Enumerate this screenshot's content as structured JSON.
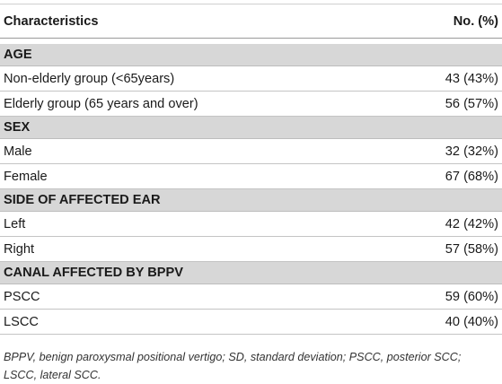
{
  "table": {
    "header": {
      "characteristics": "Characteristics",
      "value": "No. (%)"
    },
    "groups": [
      {
        "title": "AGE",
        "rows": [
          {
            "label": "Non-elderly group (<65years)",
            "value": "43 (43%)"
          },
          {
            "label": "Elderly group (65 years and over)",
            "value": "56 (57%)"
          }
        ]
      },
      {
        "title": "SEX",
        "rows": [
          {
            "label": "Male",
            "value": "32 (32%)"
          },
          {
            "label": "Female",
            "value": "67 (68%)"
          }
        ]
      },
      {
        "title": "SIDE OF AFFECTED EAR",
        "rows": [
          {
            "label": "Left",
            "value": "42 (42%)"
          },
          {
            "label": "Right",
            "value": "57 (58%)"
          }
        ]
      },
      {
        "title": "CANAL AFFECTED BY BPPV",
        "rows": [
          {
            "label": "PSCC",
            "value": "59 (60%)"
          },
          {
            "label": "LSCC",
            "value": "40 (40%)"
          }
        ]
      }
    ],
    "footnote": "BPPV, benign paroxysmal positional vertigo; SD, standard deviation; PSCC, posterior SCC; LSCC, lateral SCC."
  }
}
